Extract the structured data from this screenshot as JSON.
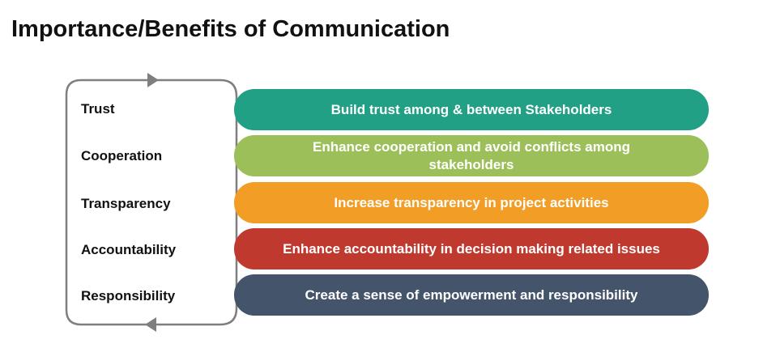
{
  "title": "Importance/Benefits of Communication",
  "rows": [
    {
      "label": "Trust",
      "text": "Build trust among & between Stakeholders",
      "color": "#21A085"
    },
    {
      "label": "Cooperation",
      "text": "Enhance cooperation and avoid conflicts among stakeholders",
      "color": "#9CBF5A"
    },
    {
      "label": "Transparency",
      "text": "Increase transparency in project activities",
      "color": "#F29D26"
    },
    {
      "label": "Accountability",
      "text": "Enhance accountability in decision making  related issues",
      "color": "#C0392F"
    },
    {
      "label": "Responsibility",
      "text": "Create a sense of empowerment and responsibility",
      "color": "#44546A"
    }
  ],
  "colors": {
    "cycle_stroke": "#7F7F7F"
  },
  "icons": {
    "cycle": "cycle-arrows-icon"
  }
}
